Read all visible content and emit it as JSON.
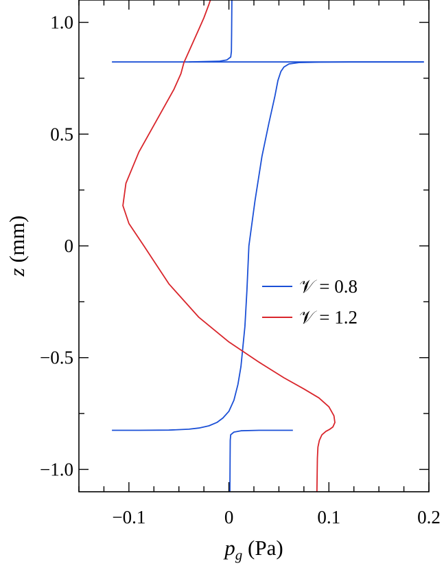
{
  "chart_data": {
    "type": "line",
    "xlabel": {
      "var": "p",
      "sub": "g",
      "unit": " (Pa)"
    },
    "ylabel": {
      "var": "z",
      "unit": " (mm)"
    },
    "xlim": [
      -0.15,
      0.2
    ],
    "ylim": [
      -1.1,
      1.1
    ],
    "xticks": [
      -0.1,
      0,
      0.1,
      0.2
    ],
    "xtick_labels": [
      "−0.1",
      "0",
      "0.1",
      "0.2"
    ],
    "xminor_step": 0.025,
    "yticks": [
      -1.0,
      -0.5,
      0,
      0.5,
      1.0
    ],
    "ytick_labels": [
      "−1.0",
      "−0.5",
      "0",
      "0.5",
      "1.0"
    ],
    "yminor_step": 0.25,
    "grid": false,
    "legend_position": "center-right",
    "series": [
      {
        "name": "𝒱 = 0.8",
        "color": "#1a4fd6",
        "segments": [
          [
            [
              0.001,
              -1.1
            ],
            [
              0.0012,
              -0.95
            ],
            [
              0.0013,
              -0.87
            ],
            [
              0.0018,
              -0.845
            ],
            [
              0.005,
              -0.833
            ],
            [
              0.012,
              -0.827
            ],
            [
              0.03,
              -0.825
            ],
            [
              0.064,
              -0.825
            ]
          ],
          [
            [
              -0.117,
              -0.825
            ],
            [
              -0.09,
              -0.825
            ],
            [
              -0.06,
              -0.824
            ],
            [
              -0.04,
              -0.82
            ],
            [
              -0.03,
              -0.815
            ],
            [
              -0.02,
              -0.805
            ],
            [
              -0.012,
              -0.79
            ],
            [
              -0.006,
              -0.77
            ],
            [
              0.0,
              -0.74
            ],
            [
              0.005,
              -0.69
            ],
            [
              0.009,
              -0.62
            ],
            [
              0.012,
              -0.54
            ],
            [
              0.014,
              -0.45
            ],
            [
              0.016,
              -0.36
            ],
            [
              0.018,
              -0.2
            ],
            [
              0.02,
              0.0
            ],
            [
              0.026,
              0.2
            ],
            [
              0.033,
              0.4
            ],
            [
              0.04,
              0.55
            ],
            [
              0.046,
              0.67
            ],
            [
              0.049,
              0.74
            ],
            [
              0.052,
              0.78
            ],
            [
              0.055,
              0.8
            ],
            [
              0.06,
              0.814
            ],
            [
              0.07,
              0.82
            ],
            [
              0.09,
              0.822
            ],
            [
              0.12,
              0.823
            ],
            [
              0.195,
              0.823
            ]
          ],
          [
            [
              -0.117,
              0.823
            ],
            [
              0.195,
              0.823
            ]
          ],
          [
            [
              -0.04,
              0.823
            ],
            [
              -0.01,
              0.826
            ],
            [
              -0.002,
              0.832
            ],
            [
              0.0018,
              0.845
            ],
            [
              0.0025,
              0.87
            ],
            [
              0.0027,
              0.95
            ],
            [
              0.003,
              1.1
            ]
          ]
        ]
      },
      {
        "name": "𝒱 = 1.2",
        "color": "#d9252b",
        "segments": [
          [
            [
              0.088,
              -1.1
            ],
            [
              0.0885,
              -0.95
            ],
            [
              0.089,
              -0.9
            ],
            [
              0.0905,
              -0.87
            ],
            [
              0.093,
              -0.845
            ],
            [
              0.097,
              -0.83
            ],
            [
              0.101,
              -0.82
            ],
            [
              0.104,
              -0.81
            ],
            [
              0.106,
              -0.79
            ],
            [
              0.105,
              -0.76
            ],
            [
              0.1,
              -0.72
            ],
            [
              0.09,
              -0.68
            ],
            [
              0.075,
              -0.64
            ],
            [
              0.055,
              -0.59
            ],
            [
              0.03,
              -0.52
            ],
            [
              0.0,
              -0.43
            ],
            [
              -0.03,
              -0.32
            ],
            [
              -0.06,
              -0.17
            ],
            [
              -0.085,
              0.0
            ],
            [
              -0.1,
              0.1
            ],
            [
              -0.106,
              0.18
            ],
            [
              -0.103,
              0.28
            ],
            [
              -0.09,
              0.42
            ],
            [
              -0.07,
              0.58
            ],
            [
              -0.055,
              0.7
            ],
            [
              -0.048,
              0.77
            ],
            [
              -0.045,
              0.82
            ],
            [
              -0.04,
              0.87
            ],
            [
              -0.03,
              0.97
            ],
            [
              -0.025,
              1.02
            ],
            [
              -0.02,
              1.08
            ],
            [
              -0.0185,
              1.1
            ]
          ]
        ]
      }
    ]
  }
}
